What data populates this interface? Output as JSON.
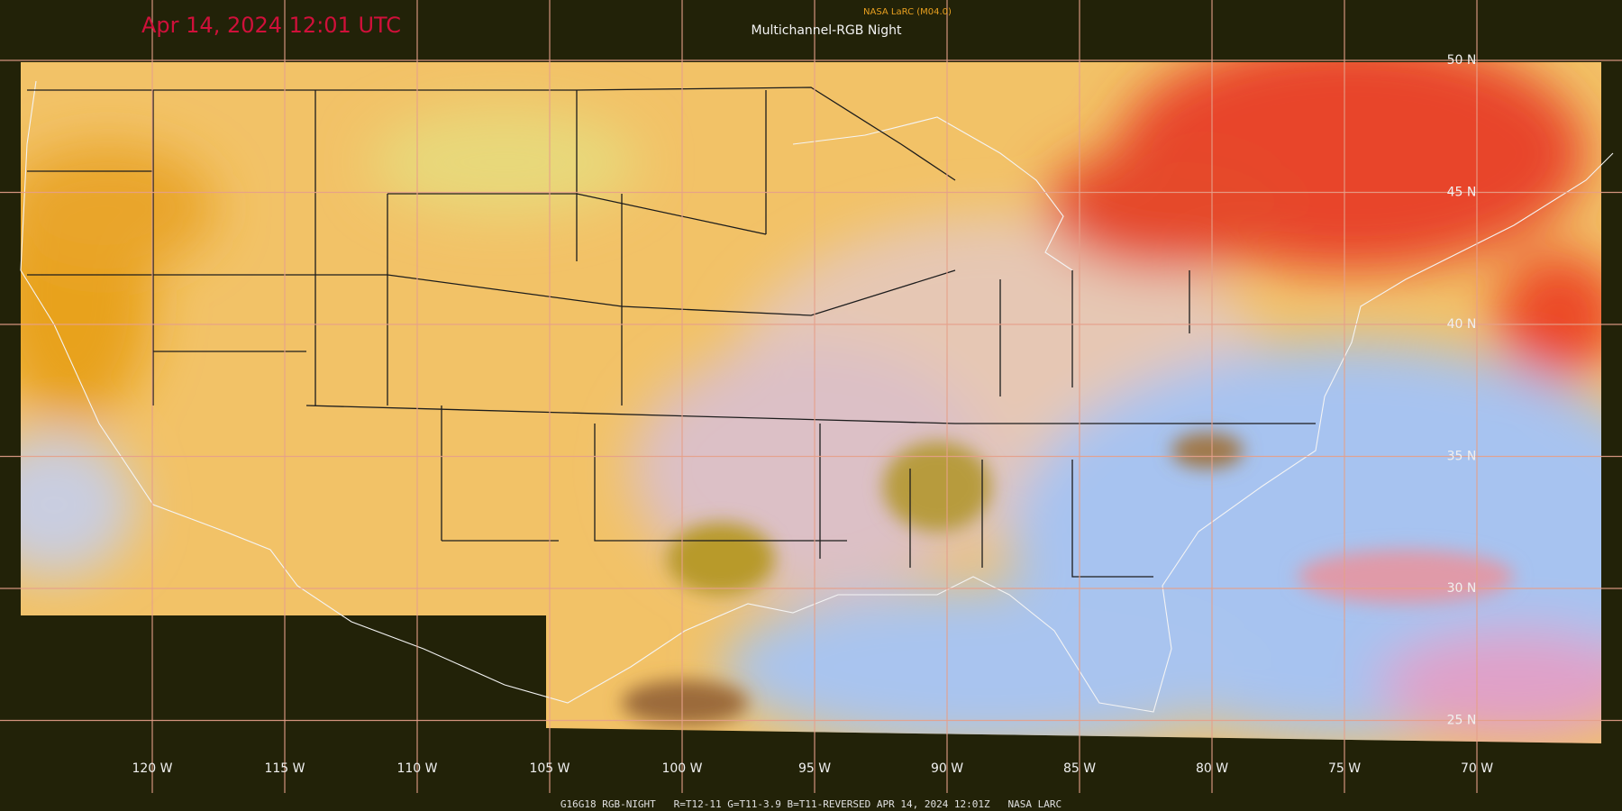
{
  "header": {
    "timestamp": "Apr 14, 2024 12:01 UTC",
    "source": "NASA LaRC (M04.0)",
    "product": "Multichannel-RGB Night"
  },
  "latitude_labels": [
    "50 N",
    "45 N",
    "40 N",
    "35 N",
    "30 N",
    "25 N"
  ],
  "longitude_labels": [
    "120 W",
    "115 W",
    "110 W",
    "105 W",
    "100 W",
    "95 W",
    "90 W",
    "85 W",
    "80 W",
    "75 W",
    "70 W"
  ],
  "footer": "G16G18 RGB-NIGHT   R=T12-11 G=T11-3.9 B=T11-REVERSED APR 14, 2024 12:01Z   NASA LARC"
}
